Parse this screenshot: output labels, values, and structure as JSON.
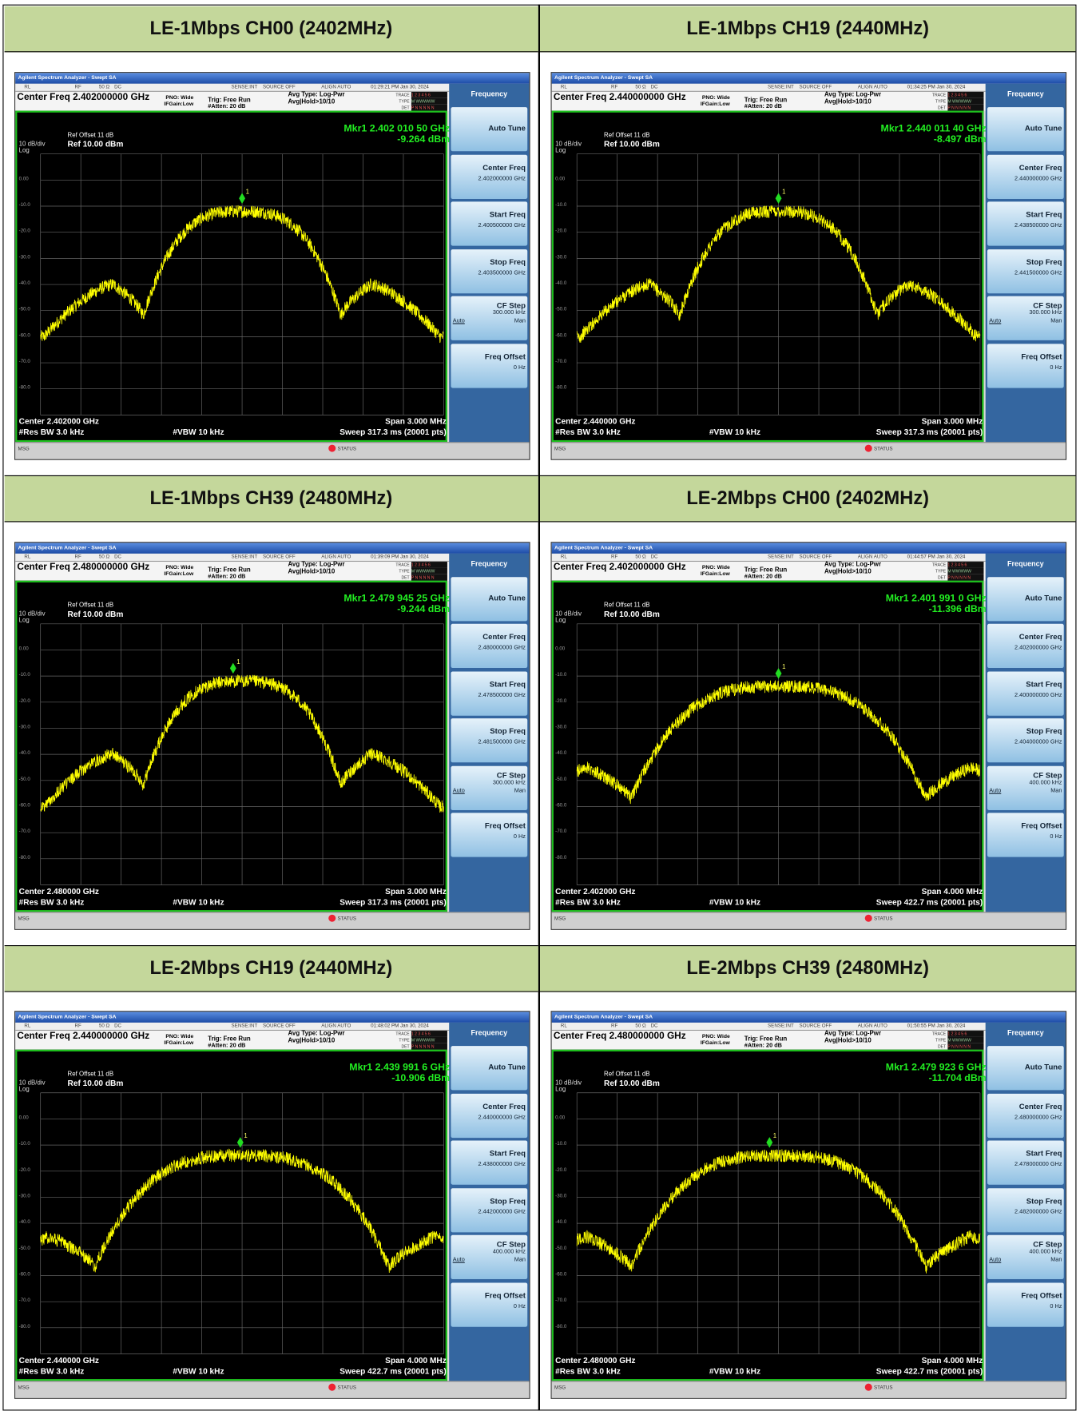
{
  "common": {
    "window_title": "Agilent Spectrum Analyzer - Swept SA",
    "status": [
      "RL",
      "RF",
      "50 Ω",
      "DC",
      "SENSE:INT",
      "SOURCE OFF",
      "ALIGN AUTO"
    ],
    "pno": "PNO: Wide",
    "ifgain": "IFGain:Low",
    "trig": "Trig: Free Run",
    "atten": "#Atten: 20 dB",
    "avg_type": "Avg Type: Log-Pwr",
    "avg_hold": "Avg|Hold>10/10",
    "trace_labels": [
      "TRACE",
      "TYPE",
      "DET"
    ],
    "trace_values": [
      "1 2 3 4 5 6",
      "M WWWWW",
      "P N N N N N"
    ],
    "ref_offset": "Ref Offset 11 dB",
    "ref_level": "Ref 10.00 dBm",
    "scale": "10 dB/div",
    "scale_type": "Log",
    "y_labels": [
      "0.00",
      "-10.0",
      "-20.0",
      "-30.0",
      "-40.0",
      "-50.0",
      "-60.0",
      "-70.0",
      "-80.0"
    ],
    "rbw": "#Res BW 3.0 kHz",
    "vbw": "#VBW 10 kHz",
    "msg": "MSG",
    "status_bar": "STATUS",
    "marker_number": "1",
    "menu": "Frequency",
    "keys": [
      "Auto Tune",
      "Center Freq",
      "Start Freq",
      "Stop Freq",
      "CF Step",
      "Freq Offset"
    ],
    "auto": "Auto",
    "man": "Man",
    "freq_offset": "0 Hz"
  },
  "panels": [
    {
      "title": "LE-1Mbps CH00 (2402MHz)",
      "time": "01:29:21 PM Jan 30, 2024",
      "center_freq": "Center Freq 2.402000000 GHz",
      "marker_freq": "Mkr1 2.402 010 50 GHz",
      "marker_level": "-9.264 dBm",
      "center": "Center 2.402000 GHz",
      "span": "Span 3.000 MHz",
      "sweep": "Sweep  317.3 ms (20001 pts)",
      "cf": "2.402000000 GHz",
      "start": "2.400500000 GHz",
      "stop": "2.403500000 GHz",
      "cf_step": "300.000 kHz"
    },
    {
      "title": "LE-1Mbps CH19 (2440MHz)",
      "time": "01:34:25 PM Jan 30, 2024",
      "center_freq": "Center Freq 2.440000000 GHz",
      "marker_freq": "Mkr1 2.440 011 40 GHz",
      "marker_level": "-8.497 dBm",
      "center": "Center 2.440000 GHz",
      "span": "Span 3.000 MHz",
      "sweep": "Sweep  317.3 ms (20001 pts)",
      "cf": "2.440000000 GHz",
      "start": "2.438500000 GHz",
      "stop": "2.441500000 GHz",
      "cf_step": "300.000 kHz"
    },
    {
      "title": "LE-1Mbps CH39 (2480MHz)",
      "time": "01:39:09 PM Jan 30, 2024",
      "center_freq": "Center Freq 2.480000000 GHz",
      "marker_freq": "Mkr1 2.479 945 25 GHz",
      "marker_level": "-9.244 dBm",
      "center": "Center 2.480000 GHz",
      "span": "Span 3.000 MHz",
      "sweep": "Sweep  317.3 ms (20001 pts)",
      "cf": "2.480000000 GHz",
      "start": "2.478500000 GHz",
      "stop": "2.481500000 GHz",
      "cf_step": "300.000 kHz"
    },
    {
      "title": "LE-2Mbps CH00 (2402MHz)",
      "time": "01:44:57 PM Jan 30, 2024",
      "center_freq": "Center Freq 2.402000000 GHz",
      "marker_freq": "Mkr1 2.401 991 0 GHz",
      "marker_level": "-11.396 dBm",
      "center": "Center 2.402000 GHz",
      "span": "Span 4.000 MHz",
      "sweep": "Sweep  422.7 ms (20001 pts)",
      "cf": "2.402000000 GHz",
      "start": "2.400000000 GHz",
      "stop": "2.404000000 GHz",
      "cf_step": "400.000 kHz"
    },
    {
      "title": "LE-2Mbps CH19 (2440MHz)",
      "time": "01:48:02 PM Jan 30, 2024",
      "center_freq": "Center Freq 2.440000000 GHz",
      "marker_freq": "Mkr1 2.439 991 6 GHz",
      "marker_level": "-10.906 dBm",
      "center": "Center 2.440000 GHz",
      "span": "Span 4.000 MHz",
      "sweep": "Sweep  422.7 ms (20001 pts)",
      "cf": "2.440000000 GHz",
      "start": "2.438000000 GHz",
      "stop": "2.442000000 GHz",
      "cf_step": "400.000 kHz"
    },
    {
      "title": "LE-2Mbps CH39 (2480MHz)",
      "time": "01:50:55 PM Jan 30, 2024",
      "center_freq": "Center Freq 2.480000000 GHz",
      "marker_freq": "Mkr1 2.479 923 6 GHz",
      "marker_level": "-11.704 dBm",
      "center": "Center 2.480000 GHz",
      "span": "Span 4.000 MHz",
      "sweep": "Sweep  422.7 ms (20001 pts)",
      "cf": "2.480000000 GHz",
      "start": "2.478000000 GHz",
      "stop": "2.482000000 GHz",
      "cf_step": "400.000 kHz"
    }
  ]
}
